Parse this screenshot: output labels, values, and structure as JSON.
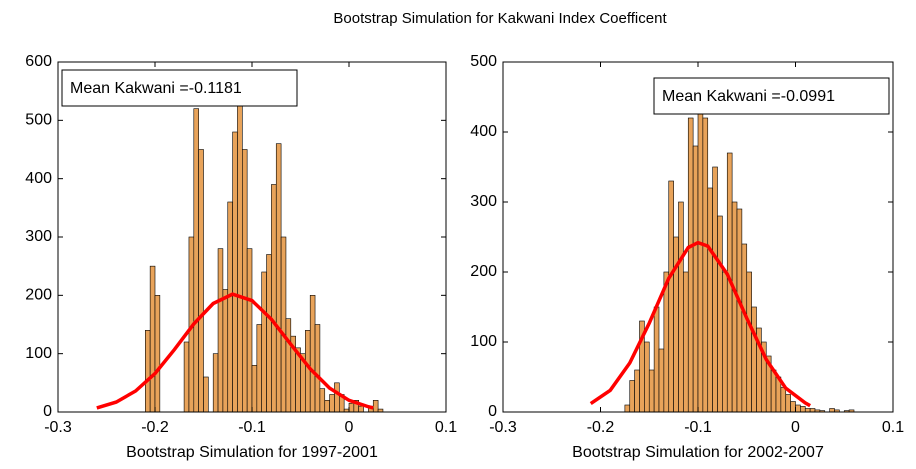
{
  "title": "Bootstrap Simulation for Kakwani Index Coefficent",
  "chart_data": [
    {
      "type": "histogram",
      "xlabel": "Bootstrap Simulation for 1997-2001",
      "annotation": "Mean Kakwani =-0.1181",
      "annotation_corner": "upper left",
      "color": "#e8a35a",
      "edgecolor": "#000000",
      "bins": [
        -0.215,
        -0.21,
        -0.205,
        -0.2,
        -0.195,
        -0.19,
        -0.185,
        -0.18,
        -0.175,
        -0.17,
        -0.165,
        -0.16,
        -0.155,
        -0.15,
        -0.145,
        -0.14,
        -0.135,
        -0.13,
        -0.125,
        -0.12,
        -0.115,
        -0.11,
        -0.105,
        -0.1,
        -0.095,
        -0.09,
        -0.085,
        -0.08,
        -0.075,
        -0.07,
        -0.065,
        -0.06,
        -0.055,
        -0.05,
        -0.045,
        -0.04,
        -0.035,
        -0.03,
        -0.025,
        -0.02,
        -0.015,
        -0.01,
        -0.005,
        0,
        0.005,
        0.01,
        0.015,
        0.02,
        0.025,
        0.03,
        0.035
      ],
      "values": [
        0,
        140,
        250,
        200,
        0,
        0,
        0,
        0,
        0,
        120,
        300,
        520,
        450,
        60,
        0,
        100,
        280,
        210,
        360,
        480,
        580,
        450,
        280,
        80,
        150,
        240,
        270,
        390,
        460,
        300,
        160,
        130,
        110,
        100,
        140,
        200,
        150,
        40,
        20,
        30,
        50,
        30,
        5,
        15,
        20,
        10,
        0,
        10,
        20,
        5
      ],
      "fit": {
        "color": "#ff0000",
        "x": [
          -0.26,
          -0.24,
          -0.22,
          -0.2,
          -0.18,
          -0.16,
          -0.14,
          -0.12,
          -0.1,
          -0.08,
          -0.06,
          -0.04,
          -0.02,
          0,
          0.02,
          0.025
        ],
        "y": [
          7,
          17,
          36,
          66,
          107,
          151,
          186,
          202,
          191,
          159,
          116,
          74,
          41,
          20,
          9,
          7
        ]
      },
      "xlim": [
        -0.3,
        0.1
      ],
      "xticks": [
        -0.3,
        -0.2,
        -0.1,
        0,
        0.1
      ],
      "ylim": [
        0,
        600
      ],
      "yticks": [
        0,
        100,
        200,
        300,
        400,
        500,
        600
      ]
    },
    {
      "type": "histogram",
      "xlabel": "Bootstrap Simulation for 2002-2007",
      "annotation": "Mean Kakwani =-0.0991",
      "annotation_corner": "upper right",
      "color": "#e8a35a",
      "edgecolor": "#000000",
      "bins": [
        -0.175,
        -0.17,
        -0.165,
        -0.16,
        -0.155,
        -0.15,
        -0.145,
        -0.14,
        -0.135,
        -0.13,
        -0.125,
        -0.12,
        -0.115,
        -0.11,
        -0.105,
        -0.1,
        -0.095,
        -0.09,
        -0.085,
        -0.08,
        -0.075,
        -0.07,
        -0.065,
        -0.06,
        -0.055,
        -0.05,
        -0.045,
        -0.04,
        -0.035,
        -0.03,
        -0.025,
        -0.02,
        -0.015,
        -0.01,
        -0.005,
        0,
        0.005,
        0.01,
        0.015,
        0.02,
        0.025,
        0.03,
        0.035,
        0.04,
        0.045,
        0.05,
        0.055,
        0.06
      ],
      "values": [
        10,
        45,
        60,
        130,
        100,
        60,
        150,
        90,
        200,
        330,
        250,
        300,
        200,
        420,
        380,
        470,
        420,
        320,
        350,
        280,
        200,
        370,
        300,
        290,
        240,
        200,
        150,
        120,
        100,
        80,
        60,
        50,
        35,
        25,
        15,
        10,
        8,
        5,
        5,
        3,
        2,
        0,
        5,
        3,
        0,
        2,
        3
      ],
      "fit": {
        "color": "#ff0000",
        "x": [
          -0.21,
          -0.19,
          -0.17,
          -0.15,
          -0.13,
          -0.11,
          -0.1,
          -0.09,
          -0.07,
          -0.05,
          -0.03,
          -0.01,
          0.01,
          0.015
        ],
        "y": [
          12,
          31,
          70,
          127,
          191,
          235,
          242,
          237,
          197,
          134,
          75,
          34,
          13,
          9
        ]
      },
      "xlim": [
        -0.3,
        0.1
      ],
      "xticks": [
        -0.3,
        -0.2,
        -0.1,
        0,
        0.1
      ],
      "ylim": [
        0,
        500
      ],
      "yticks": [
        0,
        100,
        200,
        300,
        400,
        500
      ]
    }
  ]
}
